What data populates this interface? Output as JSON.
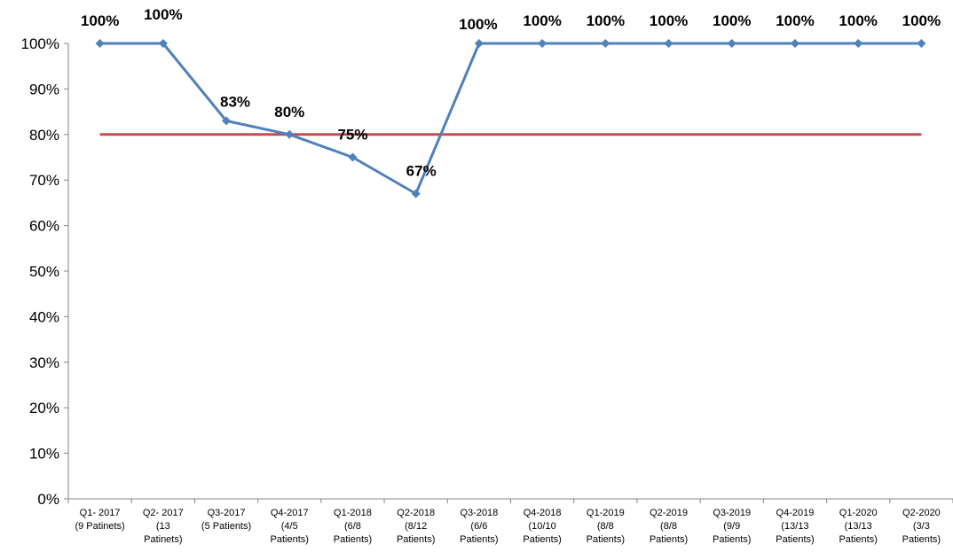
{
  "chart_data": {
    "type": "line",
    "categories": [
      [
        "Q1- 2017",
        "(9 Patinets)"
      ],
      [
        "Q2- 2017",
        "(13",
        "Patinets)"
      ],
      [
        "Q3-2017",
        "(5 Patients)"
      ],
      [
        "Q4-2017",
        "(4/5",
        "Patients)"
      ],
      [
        "Q1-2018",
        "(6/8",
        "Patients)"
      ],
      [
        "Q2-2018",
        "(8/12",
        "Patients)"
      ],
      [
        "Q3-2018",
        "(6/6",
        "Patients)"
      ],
      [
        "Q4-2018",
        "(10/10",
        "Patients)"
      ],
      [
        "Q1-2019",
        "(8/8",
        "Patients)"
      ],
      [
        "Q2-2019",
        "(8/8",
        "Patients)"
      ],
      [
        "Q3-2019",
        "(9/9",
        "Patients)"
      ],
      [
        "Q4-2019",
        "(13/13",
        "Patients)"
      ],
      [
        "Q1-2020",
        "(13/13",
        "Patients)"
      ],
      [
        "Q2-2020",
        "(3/3",
        "Patients)"
      ]
    ],
    "series": [
      {
        "values": [
          100,
          100,
          83,
          80,
          75,
          67,
          100,
          100,
          100,
          100,
          100,
          100,
          100,
          100
        ],
        "data_labels": [
          "100%",
          "100%",
          "83%",
          "80%",
          "75%",
          "67%",
          "100%",
          "100%",
          "100%",
          "100%",
          "100%",
          "100%",
          "100%",
          "100%"
        ],
        "color": "#4f81bd",
        "marker": "diamond"
      },
      {
        "values": [
          80,
          80,
          80,
          80,
          80,
          80,
          80,
          80,
          80,
          80,
          80,
          80,
          80,
          80
        ],
        "color": "#c0504d",
        "marker": "none"
      }
    ],
    "ylim": [
      0,
      100
    ],
    "y_ticks": [
      "0%",
      "10%",
      "20%",
      "30%",
      "40%",
      "50%",
      "60%",
      "70%",
      "80%",
      "90%",
      "100%"
    ],
    "grid": false,
    "legend": "none",
    "title": "",
    "xlabel": "",
    "ylabel": ""
  }
}
